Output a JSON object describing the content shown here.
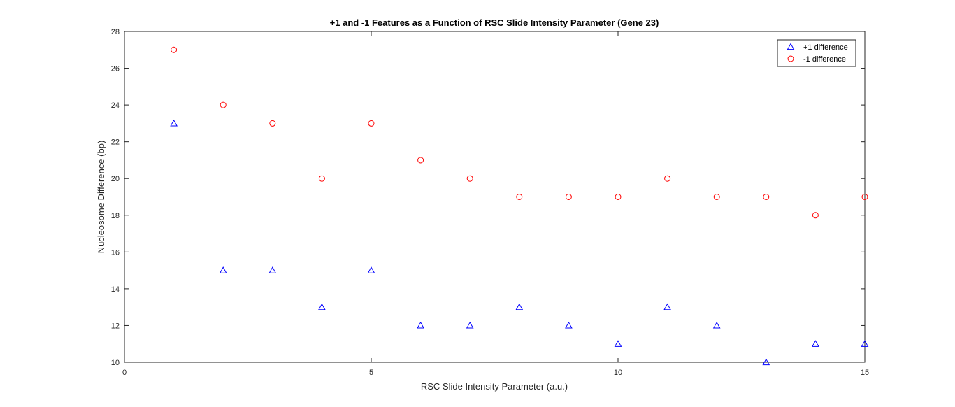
{
  "chart_data": {
    "type": "scatter",
    "title": "+1 and -1 Features as a Function of RSC Slide Intensity Parameter (Gene 23)",
    "xlabel": "RSC Slide Intensity Parameter (a.u.)",
    "ylabel": "Nucleosome Difference (bp)",
    "xlim": [
      0,
      15
    ],
    "ylim": [
      10,
      28
    ],
    "xticks": [
      0,
      5,
      10,
      15
    ],
    "yticks": [
      10,
      12,
      14,
      16,
      18,
      20,
      22,
      24,
      26,
      28
    ],
    "grid": false,
    "legend_position": "top-right",
    "series": [
      {
        "name": "+1 difference",
        "marker": "triangle",
        "color": "#0000ff",
        "x": [
          1,
          2,
          3,
          4,
          5,
          6,
          7,
          8,
          9,
          10,
          11,
          12,
          13,
          14,
          15
        ],
        "y": [
          23,
          15,
          15,
          13,
          15,
          12,
          12,
          13,
          12,
          11,
          13,
          12,
          10,
          11,
          11
        ]
      },
      {
        "name": "-1 difference",
        "marker": "circle",
        "color": "#ff0000",
        "x": [
          1,
          2,
          3,
          4,
          5,
          6,
          7,
          8,
          9,
          10,
          11,
          12,
          13,
          14,
          15
        ],
        "y": [
          27,
          24,
          23,
          20,
          23,
          21,
          20,
          19,
          19,
          19,
          20,
          19,
          19,
          18,
          19
        ]
      }
    ]
  }
}
